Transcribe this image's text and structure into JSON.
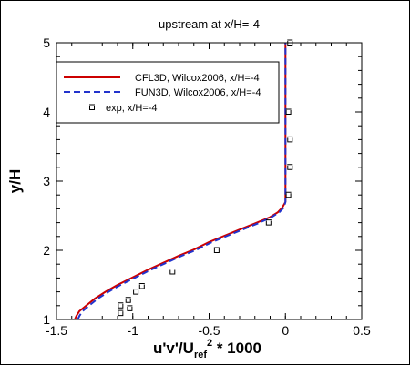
{
  "chart_data": {
    "type": "line",
    "title": "upstream at x/H=-4",
    "xlabel": "u'v'/U",
    "xlabel_sub": "ref",
    "xlabel_sup": "2",
    "xlabel_tail": " * 1000",
    "ylabel": "y/H",
    "xlim": [
      -1.5,
      0.5
    ],
    "ylim": [
      1,
      5
    ],
    "xticks": [
      -1.5,
      -1,
      -0.5,
      0,
      0.5
    ],
    "xtick_labels": [
      "-1.5",
      "-1",
      "-0.5",
      "0",
      "0.5"
    ],
    "yticks": [
      1,
      2,
      3,
      4,
      5
    ],
    "ytick_labels": [
      "1",
      "2",
      "3",
      "4",
      "5"
    ],
    "legend_position": "top-left",
    "series": [
      {
        "name": "CFL3D, Wilcox2006, x/H=-4",
        "style": "solid",
        "color": "#cc0000",
        "x": [
          -1.38,
          -1.37,
          -1.35,
          -1.3,
          -1.25,
          -1.18,
          -1.1,
          -1.0,
          -0.9,
          -0.8,
          -0.7,
          -0.6,
          -0.5,
          -0.4,
          -0.3,
          -0.2,
          -0.1,
          -0.05,
          -0.02,
          0.0,
          0.0,
          0.0
        ],
        "y": [
          1.0,
          1.05,
          1.12,
          1.21,
          1.3,
          1.4,
          1.5,
          1.61,
          1.72,
          1.82,
          1.92,
          2.01,
          2.12,
          2.21,
          2.3,
          2.39,
          2.48,
          2.55,
          2.62,
          2.7,
          3.5,
          5.0
        ]
      },
      {
        "name": "FUN3D, Wilcox2006, x/H=-4",
        "style": "dashed",
        "color": "#2233cc",
        "x": [
          -1.36,
          -1.35,
          -1.33,
          -1.28,
          -1.23,
          -1.16,
          -1.08,
          -0.98,
          -0.88,
          -0.78,
          -0.68,
          -0.58,
          -0.48,
          -0.38,
          -0.28,
          -0.18,
          -0.09,
          -0.04,
          -0.01,
          0.0,
          0.0,
          0.0
        ],
        "y": [
          1.0,
          1.05,
          1.12,
          1.21,
          1.3,
          1.4,
          1.5,
          1.61,
          1.72,
          1.82,
          1.92,
          2.01,
          2.12,
          2.21,
          2.3,
          2.39,
          2.48,
          2.55,
          2.62,
          2.7,
          3.5,
          5.0
        ]
      },
      {
        "name": "exp, x/H=-4",
        "style": "marker",
        "color": "#000000",
        "x": [
          -1.08,
          -1.08,
          -1.03,
          -1.02,
          -0.98,
          -0.94,
          -0.74,
          -0.45,
          -0.11,
          0.02,
          0.03,
          0.03,
          0.02,
          0.03
        ],
        "y": [
          1.09,
          1.2,
          1.28,
          1.16,
          1.4,
          1.48,
          1.69,
          2.0,
          2.4,
          2.8,
          3.2,
          3.6,
          4.0,
          5.0
        ]
      }
    ]
  }
}
